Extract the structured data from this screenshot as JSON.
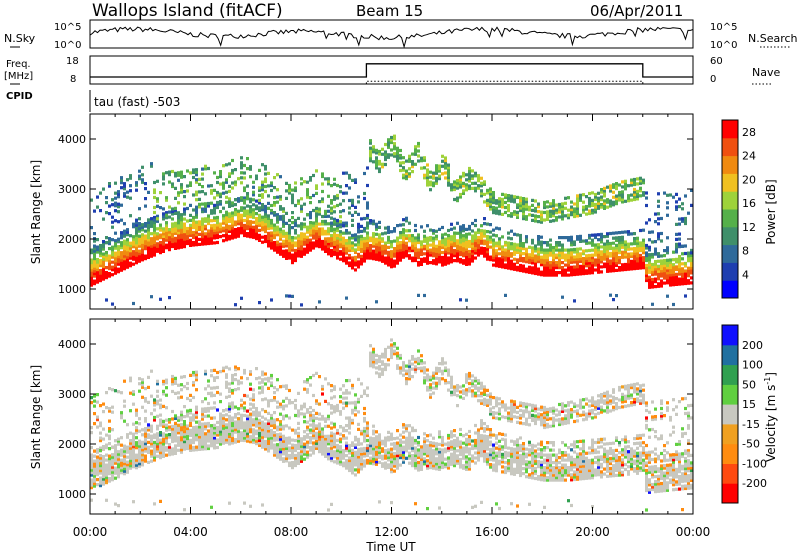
{
  "header": {
    "site": "Wallops Island (fitACF)",
    "beam": "Beam 15",
    "date": "06/Apr/2011"
  },
  "left_labels": {
    "nsky": "N.Sky",
    "freq": "Freq.",
    "freq_unit": "[MHz]",
    "cpid": "CPID"
  },
  "right_labels": {
    "nsearch": "N.Search",
    "nave": "Nave"
  },
  "cpid_text": "tau (fast) -503",
  "colors": {
    "power_scale": [
      "#0000ff",
      "#1f3fb0",
      "#2f6a9a",
      "#3f8f6a",
      "#55b04a",
      "#9ed23a",
      "#f0c020",
      "#f08a10",
      "#f05010",
      "#ff0000"
    ],
    "velocity_scale": [
      "#ff0000",
      "#ff4a10",
      "#ff8c10",
      "#f0a020",
      "#c8c8c0",
      "#60d040",
      "#30a050",
      "#2070a0",
      "#1010ff"
    ],
    "noise_line": "#000000",
    "background": "#ffffff"
  },
  "chart_data": [
    {
      "type": "line",
      "name": "noise-panel",
      "left_ticks": [
        "10^5",
        "10^0"
      ],
      "right_ticks": [
        "10^5",
        "10^0"
      ],
      "description_label": "N.Sky / N.Search"
    },
    {
      "type": "line",
      "name": "frequency-panel",
      "left_ticks": [
        "18",
        "8"
      ],
      "right_ticks": [
        "60",
        "0"
      ],
      "freq_step": {
        "hours": [
          0,
          11,
          11,
          22,
          22,
          24
        ],
        "values": [
          10.5,
          10.5,
          15.2,
          15.2,
          10.5,
          10.5
        ]
      },
      "nave_line": {
        "hours": [
          0,
          11,
          11,
          22,
          22,
          24
        ],
        "values": [
          0,
          0,
          6,
          6,
          0,
          0
        ]
      }
    },
    {
      "type": "heatmap",
      "name": "power",
      "xlabel": "Time UT",
      "ylabel": "Slant Range [km]",
      "colorbar_label": "Power [dB]",
      "x_ticks": [
        "00:00",
        "04:00",
        "08:00",
        "12:00",
        "16:00",
        "20:00",
        "00:00"
      ],
      "y_ticks": [
        1000,
        2000,
        3000,
        4000
      ],
      "ylim": [
        600,
        4500
      ],
      "xlim": [
        0,
        24
      ],
      "colorbar_ticks": [
        4,
        8,
        12,
        16,
        20,
        24,
        28
      ],
      "clim": [
        0,
        30
      ],
      "main_echo": {
        "hours": [
          0,
          1,
          2,
          3,
          4,
          5,
          6,
          6.5,
          7,
          8,
          9,
          9.5,
          10,
          10.5,
          11,
          11.5,
          12,
          12.5,
          13,
          13.5,
          14,
          14.5,
          15,
          15.5,
          16,
          16.5,
          17,
          18,
          19,
          20,
          21,
          22,
          22.1,
          23,
          24
        ],
        "range_km": [
          1150,
          1400,
          1650,
          1850,
          1950,
          2000,
          2150,
          2100,
          1950,
          1600,
          1950,
          1750,
          1650,
          1450,
          1700,
          1650,
          1500,
          1750,
          1550,
          1600,
          1550,
          1650,
          1550,
          1800,
          1550,
          1500,
          1450,
          1350,
          1350,
          1400,
          1450,
          1500,
          1100,
          1150,
          1200
        ]
      },
      "upper_echo": {
        "hours": [
          11,
          11.5,
          12,
          12.5,
          13,
          13.5,
          14,
          14.5,
          15,
          15.5,
          16,
          17,
          18,
          19,
          20,
          21,
          22
        ],
        "range_km": [
          3800,
          3500,
          3900,
          3300,
          3700,
          3100,
          3500,
          2900,
          3200,
          3000,
          2700,
          2600,
          2500,
          2600,
          2700,
          2900,
          3000
        ]
      }
    },
    {
      "type": "heatmap",
      "name": "velocity",
      "xlabel": "Time UT",
      "ylabel": "Slant Range [km]",
      "colorbar_label": "Velocity [m s^-1]",
      "x_ticks": [
        "00:00",
        "04:00",
        "08:00",
        "12:00",
        "16:00",
        "20:00",
        "00:00"
      ],
      "y_ticks": [
        1000,
        2000,
        3000,
        4000
      ],
      "ylim": [
        600,
        4500
      ],
      "xlim": [
        0,
        24
      ],
      "colorbar_ticks": [
        200,
        100,
        50,
        15,
        -15,
        -50,
        -100,
        -200
      ]
    }
  ],
  "axis_text": {
    "xlabel": "Time UT",
    "ylabel": "Slant Range [km]",
    "power_label": "Power [dB]",
    "velocity_label": "Velocity [m s",
    "velocity_sup": "-1",
    "velocity_close": "]"
  }
}
